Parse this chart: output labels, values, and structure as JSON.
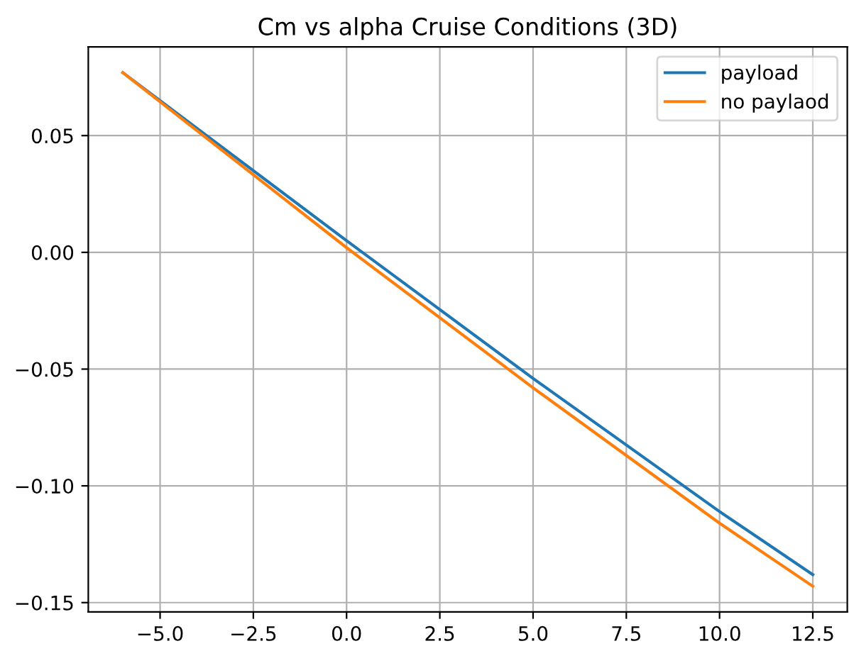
{
  "chart_data": {
    "type": "line",
    "title": "Cm vs alpha Cruise Conditions (3D)",
    "x": [
      -6,
      0,
      5,
      10,
      12.5
    ],
    "series": [
      {
        "name": "payload",
        "color": "#1f77b4",
        "values": [
          0.077,
          0.005,
          -0.054,
          -0.111,
          -0.138
        ]
      },
      {
        "name": "no paylaod",
        "color": "#ff7f0e",
        "values": [
          0.077,
          0.002,
          -0.058,
          -0.116,
          -0.143
        ]
      }
    ],
    "xlim": [
      -6.925,
      13.425
    ],
    "ylim": [
      -0.154,
      0.088
    ],
    "xticks": [
      {
        "value": -5,
        "label": "−5.0"
      },
      {
        "value": -2.5,
        "label": "−2.5"
      },
      {
        "value": 0,
        "label": "0.0"
      },
      {
        "value": 2.5,
        "label": "2.5"
      },
      {
        "value": 5,
        "label": "5.0"
      },
      {
        "value": 7.5,
        "label": "7.5"
      },
      {
        "value": 10,
        "label": "10.0"
      },
      {
        "value": 12.5,
        "label": "12.5"
      }
    ],
    "yticks": [
      {
        "value": -0.15,
        "label": "−0.15"
      },
      {
        "value": -0.1,
        "label": "−0.10"
      },
      {
        "value": -0.05,
        "label": "−0.05"
      },
      {
        "value": 0,
        "label": "0.00"
      },
      {
        "value": 0.05,
        "label": "0.05"
      }
    ],
    "grid": true,
    "legend": "top right"
  }
}
